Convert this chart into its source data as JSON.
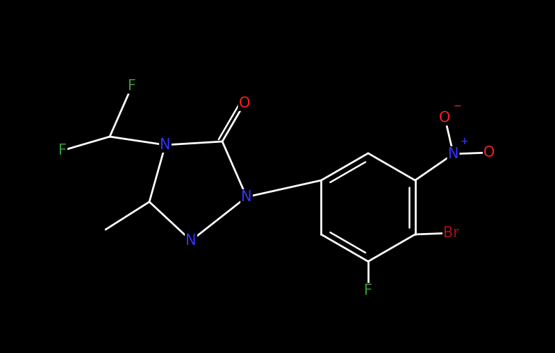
{
  "bg_color": "#000000",
  "bond_color": "#ffffff",
  "F_color": "#3a9a3a",
  "N_color": "#3333ff",
  "O_color": "#ff2020",
  "Br_color": "#aa1111",
  "figsize": [
    7.99,
    5.09
  ],
  "dpi": 100,
  "xlim": [
    0,
    7.99
  ],
  "ylim": [
    0,
    5.09
  ]
}
